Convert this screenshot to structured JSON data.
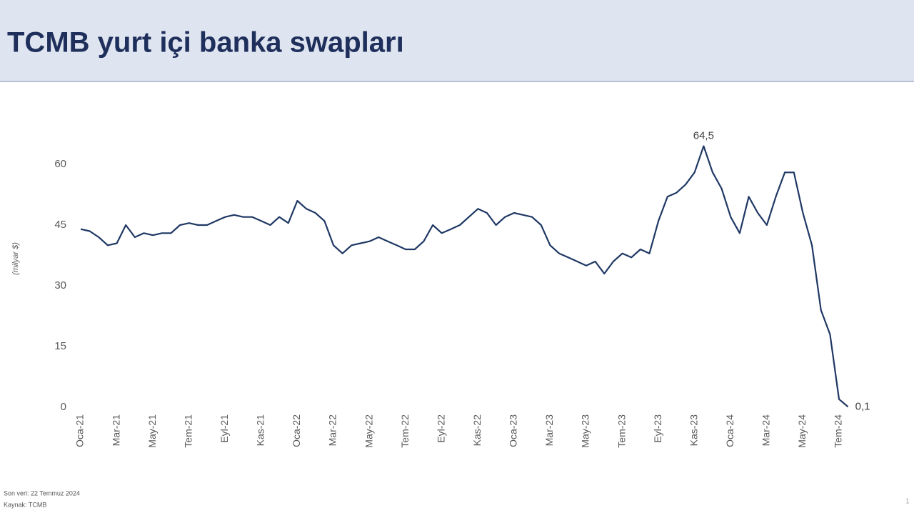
{
  "header": {
    "title": "TCMB yurt içi banka swapları"
  },
  "chart_data": {
    "type": "line",
    "y_label": "(milyar $)",
    "color": "#1f3864",
    "categories": [
      "Oca-21",
      null,
      null,
      null,
      "Mar-21",
      null,
      null,
      null,
      "May-21",
      null,
      null,
      null,
      "Tem-21",
      null,
      null,
      null,
      "Eyl-21",
      null,
      null,
      null,
      "Kas-21",
      null,
      null,
      null,
      "Oca-22",
      null,
      null,
      null,
      "Mar-22",
      null,
      null,
      null,
      "May-22",
      null,
      null,
      null,
      "Tem-22",
      null,
      null,
      null,
      "Eyl-22",
      null,
      null,
      null,
      "Kas-22",
      null,
      null,
      null,
      "Oca-23",
      null,
      null,
      null,
      "Mar-23",
      null,
      null,
      null,
      "May-23",
      null,
      null,
      null,
      "Tem-23",
      null,
      null,
      null,
      "Eyl-23",
      null,
      null,
      null,
      "Kas-23",
      null,
      null,
      null,
      "Oca-24",
      null,
      null,
      null,
      "Mar-24",
      null,
      null,
      null,
      "May-24",
      null,
      null,
      null,
      "Tem-24",
      null
    ],
    "values": [
      44,
      43.5,
      42,
      40,
      40.5,
      45,
      42,
      43,
      42.5,
      43,
      43,
      45,
      45.5,
      45,
      45,
      46,
      47,
      47.5,
      47,
      47,
      46,
      45,
      47,
      45.5,
      51,
      49,
      48,
      46,
      40,
      38,
      40,
      40.5,
      41,
      42,
      41,
      40,
      39,
      39,
      41,
      45,
      43,
      44,
      45,
      47,
      49,
      48,
      45,
      47,
      48,
      47.5,
      47,
      45,
      40,
      38,
      37,
      36,
      35,
      36,
      33,
      36,
      38,
      37,
      39,
      38,
      46,
      52,
      53,
      55,
      58,
      64.5,
      58,
      54,
      47,
      43,
      52,
      48,
      45,
      52,
      58,
      58,
      48,
      40,
      24,
      18,
      2,
      0.1
    ],
    "value_labels": [
      null,
      null,
      null,
      null,
      null,
      null,
      null,
      null,
      null,
      null,
      null,
      null,
      null,
      null,
      null,
      null,
      null,
      null,
      null,
      null,
      null,
      null,
      null,
      null,
      null,
      null,
      null,
      null,
      null,
      null,
      null,
      null,
      null,
      null,
      null,
      null,
      null,
      null,
      null,
      null,
      null,
      null,
      null,
      null,
      null,
      null,
      null,
      null,
      null,
      null,
      null,
      null,
      null,
      null,
      null,
      null,
      null,
      null,
      null,
      null,
      null,
      null,
      null,
      null,
      null,
      null,
      null,
      null,
      null,
      "64,5",
      null,
      null,
      null,
      null,
      null,
      null,
      null,
      null,
      null,
      null,
      null,
      null,
      null,
      null,
      null,
      "0,1"
    ],
    "ylim": [
      0,
      66
    ],
    "yticks": [
      0,
      15,
      30,
      45,
      60
    ],
    "grid": false
  },
  "footer": {
    "notes": [
      "Son veri: 22 Temmuz 2024",
      "Kaynak: TCMB"
    ],
    "page_number": "1"
  }
}
